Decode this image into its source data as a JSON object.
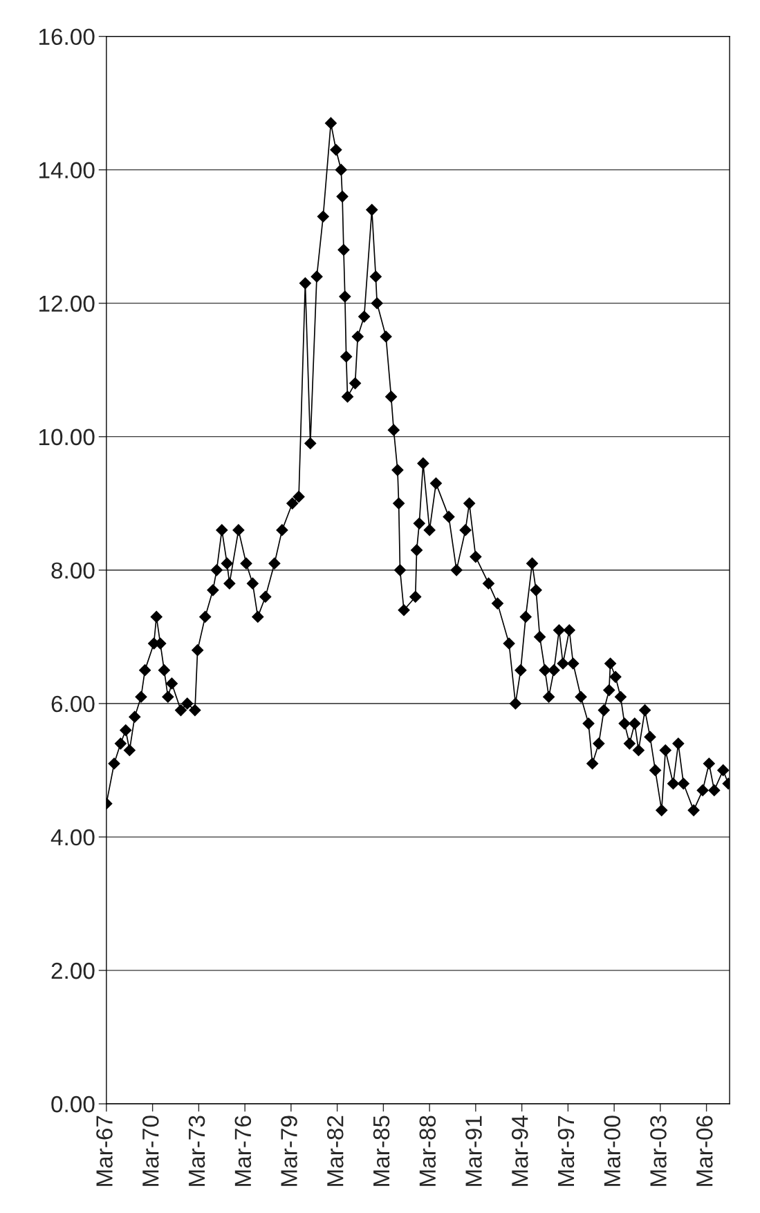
{
  "chart_data": {
    "type": "line",
    "color": "#000000",
    "marker": "diamond",
    "line_style": "solid",
    "grid": "y",
    "legend": false,
    "x": [
      "1967-03",
      "1967-09",
      "1968-02",
      "1968-06",
      "1968-09",
      "1969-01",
      "1969-06",
      "1969-09",
      "1970-04",
      "1970-06",
      "1970-09",
      "1970-12",
      "1971-03",
      "1971-06",
      "1972-01",
      "1972-06",
      "1972-12",
      "1973-02",
      "1973-08",
      "1974-02",
      "1974-05",
      "1974-09",
      "1975-01",
      "1975-03",
      "1975-10",
      "1976-04",
      "1976-09",
      "1977-01",
      "1977-07",
      "1978-02",
      "1978-08",
      "1979-04",
      "1979-09",
      "1980-02",
      "1980-06",
      "1980-11",
      "1981-04",
      "1981-10",
      "1982-02",
      "1982-06",
      "1982-07",
      "1982-08",
      "1982-09",
      "1982-10",
      "1982-11",
      "1983-05",
      "1983-07",
      "1983-12",
      "1984-06",
      "1984-09",
      "1984-10",
      "1985-05",
      "1985-09",
      "1985-11",
      "1986-02",
      "1986-03",
      "1986-04",
      "1986-07",
      "1987-04",
      "1987-05",
      "1987-07",
      "1987-10",
      "1988-03",
      "1988-08",
      "1989-06",
      "1989-12",
      "1990-07",
      "1990-10",
      "1991-03",
      "1992-01",
      "1992-08",
      "1993-05",
      "1993-10",
      "1994-02",
      "1994-06",
      "1994-11",
      "1995-02",
      "1995-05",
      "1995-09",
      "1995-12",
      "1996-04",
      "1996-08",
      "1996-11",
      "1997-04",
      "1997-07",
      "1998-01",
      "1998-07",
      "1998-10",
      "1999-03",
      "1999-07",
      "1999-11",
      "1999-12",
      "2000-04",
      "2000-08",
      "2000-11",
      "2001-03",
      "2001-07",
      "2001-10",
      "2002-03",
      "2002-07",
      "2002-11",
      "2003-04",
      "2003-07",
      "2004-01",
      "2004-05",
      "2004-09",
      "2005-05",
      "2005-12",
      "2006-05",
      "2006-09",
      "2007-04",
      "2007-08"
    ],
    "values": [
      4.5,
      5.1,
      5.4,
      5.6,
      5.3,
      5.8,
      6.1,
      6.5,
      6.9,
      7.3,
      6.9,
      6.5,
      6.1,
      6.3,
      5.9,
      6.0,
      5.9,
      6.8,
      7.3,
      7.7,
      8.0,
      8.6,
      8.1,
      7.8,
      8.6,
      8.1,
      7.8,
      7.3,
      7.6,
      8.1,
      8.6,
      9.0,
      9.1,
      12.3,
      9.9,
      12.4,
      13.3,
      14.7,
      14.3,
      14.0,
      13.6,
      12.8,
      12.1,
      11.2,
      10.6,
      10.8,
      11.5,
      11.8,
      13.4,
      12.4,
      12.0,
      11.5,
      10.6,
      10.1,
      9.5,
      9.0,
      8.0,
      7.4,
      7.6,
      8.3,
      8.7,
      9.6,
      8.6,
      9.3,
      8.8,
      8.0,
      8.6,
      9.0,
      8.2,
      7.8,
      7.5,
      6.9,
      6.0,
      6.5,
      7.3,
      8.1,
      7.7,
      7.0,
      6.5,
      6.1,
      6.5,
      7.1,
      6.6,
      7.1,
      6.6,
      6.1,
      5.7,
      5.1,
      5.4,
      5.9,
      6.2,
      6.6,
      6.4,
      6.1,
      5.7,
      5.4,
      5.7,
      5.3,
      5.9,
      5.5,
      5.0,
      4.4,
      5.3,
      4.8,
      5.4,
      4.8,
      4.4,
      4.7,
      5.1,
      4.7,
      5.0,
      4.8
    ],
    "xlim": [
      "1967-03",
      "2007-09"
    ],
    "xticks": [
      {
        "value": "1967-03",
        "label": "Mar-67"
      },
      {
        "value": "1970-03",
        "label": "Mar-70"
      },
      {
        "value": "1973-03",
        "label": "Mar-73"
      },
      {
        "value": "1976-03",
        "label": "Mar-76"
      },
      {
        "value": "1979-03",
        "label": "Mar-79"
      },
      {
        "value": "1982-03",
        "label": "Mar-82"
      },
      {
        "value": "1985-03",
        "label": "Mar-85"
      },
      {
        "value": "1988-03",
        "label": "Mar-88"
      },
      {
        "value": "1991-03",
        "label": "Mar-91"
      },
      {
        "value": "1994-03",
        "label": "Mar-94"
      },
      {
        "value": "1997-03",
        "label": "Mar-97"
      },
      {
        "value": "2000-03",
        "label": "Mar-00"
      },
      {
        "value": "2003-03",
        "label": "Mar-03"
      },
      {
        "value": "2006-03",
        "label": "Mar-06"
      }
    ],
    "ylim": [
      0,
      16
    ],
    "yticks": [
      {
        "value": 0,
        "label": "0.00"
      },
      {
        "value": 2,
        "label": "2.00"
      },
      {
        "value": 4,
        "label": "4.00"
      },
      {
        "value": 6,
        "label": "6.00"
      },
      {
        "value": 8,
        "label": "8.00"
      },
      {
        "value": 10,
        "label": "10.00"
      },
      {
        "value": 12,
        "label": "12.00"
      },
      {
        "value": 14,
        "label": "14.00"
      },
      {
        "value": 16,
        "label": "16.00"
      }
    ]
  }
}
